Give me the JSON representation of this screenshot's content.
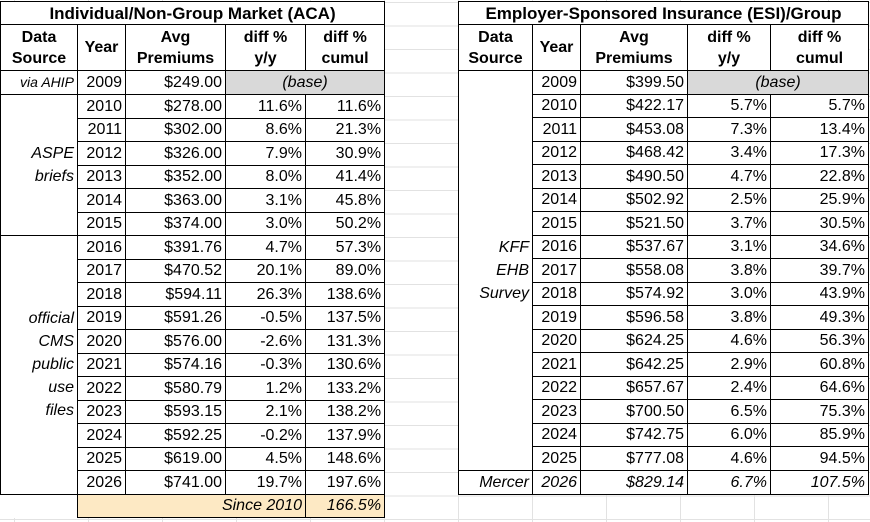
{
  "panels": [
    {
      "title": "Individual/Non-Group Market (ACA)",
      "headers": [
        [
          "Data",
          "Source"
        ],
        [
          "Year"
        ],
        [
          "Avg",
          "Premiums"
        ],
        [
          "diff %",
          "y/y"
        ],
        [
          "diff %",
          "cumul"
        ]
      ],
      "groups": [
        {
          "source": [
            "via AHIP"
          ],
          "rows": [
            {
              "year": "2009",
              "premium": "$249.00",
              "base": "(base)"
            }
          ]
        },
        {
          "source": [
            "ASPE",
            "briefs"
          ],
          "rows": [
            {
              "year": "2010",
              "premium": "$278.00",
              "yy": "11.6%",
              "cumul": "11.6%"
            },
            {
              "year": "2011",
              "premium": "$302.00",
              "yy": "8.6%",
              "cumul": "21.3%"
            },
            {
              "year": "2012",
              "premium": "$326.00",
              "yy": "7.9%",
              "cumul": "30.9%"
            },
            {
              "year": "2013",
              "premium": "$352.00",
              "yy": "8.0%",
              "cumul": "41.4%"
            },
            {
              "year": "2014",
              "premium": "$363.00",
              "yy": "3.1%",
              "cumul": "45.8%"
            },
            {
              "year": "2015",
              "premium": "$374.00",
              "yy": "3.0%",
              "cumul": "50.2%"
            }
          ]
        },
        {
          "source": [
            "official",
            "CMS",
            "public",
            "use",
            "files"
          ],
          "rows": [
            {
              "year": "2016",
              "premium": "$391.76",
              "yy": "4.7%",
              "cumul": "57.3%"
            },
            {
              "year": "2017",
              "premium": "$470.52",
              "yy": "20.1%",
              "cumul": "89.0%"
            },
            {
              "year": "2018",
              "premium": "$594.11",
              "yy": "26.3%",
              "cumul": "138.6%"
            },
            {
              "year": "2019",
              "premium": "$591.26",
              "yy": "-0.5%",
              "cumul": "137.5%"
            },
            {
              "year": "2020",
              "premium": "$576.00",
              "yy": "-2.6%",
              "cumul": "131.3%"
            },
            {
              "year": "2021",
              "premium": "$574.16",
              "yy": "-0.3%",
              "cumul": "130.6%"
            },
            {
              "year": "2022",
              "premium": "$580.79",
              "yy": "1.2%",
              "cumul": "133.2%"
            },
            {
              "year": "2023",
              "premium": "$593.15",
              "yy": "2.1%",
              "cumul": "138.2%"
            },
            {
              "year": "2024",
              "premium": "$592.25",
              "yy": "-0.2%",
              "cumul": "137.9%"
            },
            {
              "year": "2025",
              "premium": "$619.00",
              "yy": "4.5%",
              "cumul": "148.6%"
            },
            {
              "year": "2026",
              "premium": "$741.00",
              "yy": "19.7%",
              "cumul": "197.6%"
            }
          ]
        }
      ],
      "summary": {
        "label": "Since 2010",
        "value": "166.5%"
      }
    },
    {
      "title": "Employer-Sponsored Insurance (ESI)/Group",
      "headers": [
        [
          "Data",
          "Source"
        ],
        [
          "Year"
        ],
        [
          "Avg",
          "Premiums"
        ],
        [
          "diff %",
          "y/y"
        ],
        [
          "diff %",
          "cumul"
        ]
      ],
      "groups": [
        {
          "source": [
            "KFF",
            "EHB",
            "Survey"
          ],
          "rows": [
            {
              "year": "2009",
              "premium": "$399.50",
              "base": "(base)"
            },
            {
              "year": "2010",
              "premium": "$422.17",
              "yy": "5.7%",
              "cumul": "5.7%"
            },
            {
              "year": "2011",
              "premium": "$453.08",
              "yy": "7.3%",
              "cumul": "13.4%"
            },
            {
              "year": "2012",
              "premium": "$468.42",
              "yy": "3.4%",
              "cumul": "17.3%"
            },
            {
              "year": "2013",
              "premium": "$490.50",
              "yy": "4.7%",
              "cumul": "22.8%"
            },
            {
              "year": "2014",
              "premium": "$502.92",
              "yy": "2.5%",
              "cumul": "25.9%"
            },
            {
              "year": "2015",
              "premium": "$521.50",
              "yy": "3.7%",
              "cumul": "30.5%"
            },
            {
              "year": "2016",
              "premium": "$537.67",
              "yy": "3.1%",
              "cumul": "34.6%"
            },
            {
              "year": "2017",
              "premium": "$558.08",
              "yy": "3.8%",
              "cumul": "39.7%"
            },
            {
              "year": "2018",
              "premium": "$574.92",
              "yy": "3.0%",
              "cumul": "43.9%"
            },
            {
              "year": "2019",
              "premium": "$596.58",
              "yy": "3.8%",
              "cumul": "49.3%"
            },
            {
              "year": "2020",
              "premium": "$624.25",
              "yy": "4.6%",
              "cumul": "56.3%"
            },
            {
              "year": "2021",
              "premium": "$642.25",
              "yy": "2.9%",
              "cumul": "60.8%"
            },
            {
              "year": "2022",
              "premium": "$657.67",
              "yy": "2.4%",
              "cumul": "64.6%"
            },
            {
              "year": "2023",
              "premium": "$700.50",
              "yy": "6.5%",
              "cumul": "75.3%"
            },
            {
              "year": "2024",
              "premium": "$742.75",
              "yy": "6.0%",
              "cumul": "85.9%"
            },
            {
              "year": "2025",
              "premium": "$777.08",
              "yy": "4.6%",
              "cumul": "94.5%"
            }
          ]
        },
        {
          "source": [
            "Mercer"
          ],
          "italic": true,
          "rows": [
            {
              "year": "2026",
              "premium": "$829.14",
              "yy": "6.7%",
              "cumul": "107.5%"
            }
          ]
        }
      ]
    }
  ]
}
